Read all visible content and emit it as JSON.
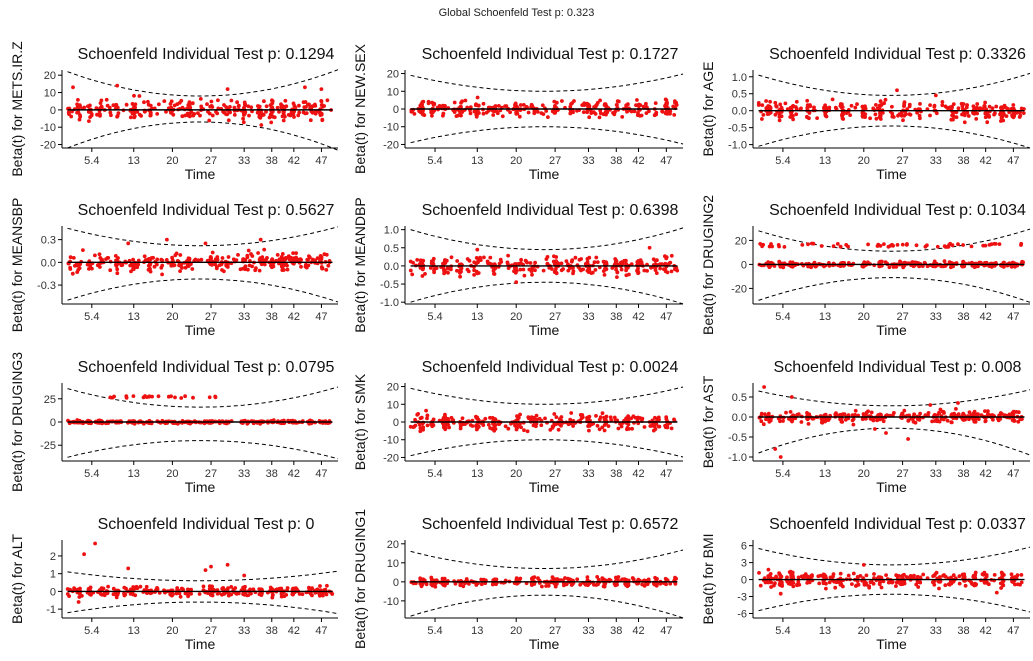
{
  "global_title": "Global Schoenfeld Test p: 0.323",
  "colors": {
    "points": "#ee1111",
    "line": "#000000",
    "band": "#000000",
    "background": "#ffffff"
  },
  "chart_data": [
    {
      "type": "scatter",
      "title": "Schoenfeld Individual Test p: 0.1294",
      "xlabel": "Time",
      "ylabel": "Beta(t) for METS.IR.Z",
      "xlim": [
        0,
        50
      ],
      "x_ticks": [
        "5.4",
        "13",
        "20",
        "27",
        "33",
        "38",
        "42",
        "47"
      ],
      "ylim": [
        -22,
        23
      ],
      "y_ticks": [
        -20,
        -10,
        0,
        10,
        20
      ],
      "spread": 5,
      "outliers": [
        [
          2,
          13
        ],
        [
          10,
          14
        ],
        [
          30,
          12
        ],
        [
          44,
          13
        ],
        [
          47,
          12
        ]
      ],
      "band_mid": [
        8,
        -7
      ],
      "band_end": [
        22,
        -22
      ]
    },
    {
      "type": "scatter",
      "title": "Schoenfeld Individual Test p: 0.1727",
      "xlabel": "Time",
      "ylabel": "Beta(t) for NEW.SEX",
      "xlim": [
        0,
        50
      ],
      "x_ticks": [
        "5.4",
        "13",
        "20",
        "27",
        "33",
        "38",
        "42",
        "47"
      ],
      "ylim": [
        -22,
        22
      ],
      "y_ticks": [
        -20,
        -10,
        0,
        10,
        20
      ],
      "spread": 4,
      "outliers": [],
      "band_mid": [
        10,
        -10
      ],
      "band_end": [
        19,
        -19
      ]
    },
    {
      "type": "scatter",
      "title": "Schoenfeld Individual Test p: 0.3326",
      "xlabel": "Time",
      "ylabel": "Beta(t) for AGE",
      "xlim": [
        0,
        50
      ],
      "x_ticks": [
        "5.4",
        "13",
        "20",
        "27",
        "33",
        "38",
        "42",
        "47"
      ],
      "ylim": [
        -1.1,
        1.2
      ],
      "y_ticks": [
        "-1.0",
        "-0.5",
        "0.0",
        "0.5",
        "1.0"
      ],
      "spread": 0.25,
      "outliers": [
        [
          26,
          0.6
        ],
        [
          33,
          0.45
        ]
      ],
      "band_mid": [
        0.45,
        -0.45
      ],
      "band_end": [
        1.05,
        -1.05
      ]
    },
    {
      "type": "scatter",
      "title": "Schoenfeld Individual Test p: 0.5627",
      "xlabel": "Time",
      "ylabel": "Beta(t) for MEANSBP",
      "xlim": [
        0,
        50
      ],
      "x_ticks": [
        "5.4",
        "13",
        "20",
        "27",
        "33",
        "38",
        "42",
        "47"
      ],
      "ylim": [
        -0.55,
        0.48
      ],
      "y_ticks": [
        "-0.3",
        "0.0",
        "0.3"
      ],
      "spread": 0.1,
      "outliers": [
        [
          19,
          0.3
        ],
        [
          26,
          0.25
        ],
        [
          36,
          0.3
        ],
        [
          12,
          0.25
        ]
      ],
      "band_mid": [
        0.22,
        -0.22
      ],
      "band_end": [
        0.45,
        -0.5
      ]
    },
    {
      "type": "scatter",
      "title": "Schoenfeld Individual Test p: 0.6398",
      "xlabel": "Time",
      "ylabel": "Beta(t) for MEANDBP",
      "xlim": [
        0,
        50
      ],
      "x_ticks": [
        "5.4",
        "13",
        "20",
        "27",
        "33",
        "38",
        "42",
        "47"
      ],
      "ylim": [
        -1.05,
        1.1
      ],
      "y_ticks": [
        "-1.0",
        "-0.5",
        "0.0",
        "0.5",
        "1.0"
      ],
      "spread": 0.22,
      "outliers": [
        [
          13,
          0.45
        ],
        [
          44,
          0.5
        ],
        [
          20,
          -0.45
        ]
      ],
      "band_mid": [
        0.45,
        -0.45
      ],
      "band_end": [
        1.0,
        -1.0
      ]
    },
    {
      "type": "scatter",
      "title": "Schoenfeld Individual Test p: 0.1034",
      "xlabel": "Time",
      "ylabel": "Beta(t) for DRUGING2",
      "xlim": [
        0,
        50
      ],
      "x_ticks": [
        "5.4",
        "13",
        "20",
        "27",
        "33",
        "38",
        "42",
        "47"
      ],
      "ylim": [
        -33,
        32
      ],
      "y_ticks": [
        -20,
        0,
        20
      ],
      "spread": 2,
      "outliers": [],
      "cluster_y": 16,
      "band_mid": [
        11,
        -11
      ],
      "band_end": [
        28,
        -30
      ]
    },
    {
      "type": "scatter",
      "title": "Schoenfeld Individual Test p: 0.0795",
      "xlabel": "Time",
      "ylabel": "Beta(t) for DRUGING3",
      "xlim": [
        0,
        50
      ],
      "x_ticks": [
        "5.4",
        "13",
        "20",
        "27",
        "33",
        "38",
        "42",
        "47"
      ],
      "ylim": [
        -42,
        42
      ],
      "y_ticks": [
        -25,
        0,
        25
      ],
      "spread": 1.5,
      "outliers": [],
      "cluster_y": 27,
      "cluster_range": [
        8,
        28
      ],
      "band_mid": [
        16,
        -20
      ],
      "band_end": [
        36,
        -38
      ]
    },
    {
      "type": "scatter",
      "title": "Schoenfeld Individual Test p: 0.0024",
      "xlabel": "Time",
      "ylabel": "Beta(t) for SMK",
      "xlim": [
        0,
        50
      ],
      "x_ticks": [
        "5.4",
        "13",
        "20",
        "27",
        "33",
        "38",
        "42",
        "47"
      ],
      "ylim": [
        -22,
        22
      ],
      "y_ticks": [
        -20,
        -10,
        0,
        10,
        20
      ],
      "spread": 4,
      "outliers": [],
      "band_mid": [
        10,
        -10
      ],
      "band_end": [
        19,
        -19
      ]
    },
    {
      "type": "scatter",
      "title": "Schoenfeld Individual Test p: 0.008",
      "xlabel": "Time",
      "ylabel": "Beta(t) for AST",
      "xlim": [
        0,
        50
      ],
      "x_ticks": [
        "5.4",
        "13",
        "20",
        "27",
        "33",
        "38",
        "42",
        "47"
      ],
      "ylim": [
        -1.1,
        0.85
      ],
      "y_ticks": [
        "-1.0",
        "-0.5",
        "0.0",
        "0.5"
      ],
      "spread": 0.12,
      "outliers": [
        [
          2,
          0.75
        ],
        [
          4,
          -0.8
        ],
        [
          5,
          -1.0
        ],
        [
          7,
          0.5
        ],
        [
          24,
          -0.4
        ],
        [
          28,
          -0.55
        ],
        [
          32,
          0.3
        ],
        [
          37,
          0.35
        ],
        [
          22,
          -0.3
        ]
      ],
      "band_mid": [
        0.28,
        -0.28
      ],
      "band_end": [
        0.65,
        -0.9
      ]
    },
    {
      "type": "scatter",
      "title": "Schoenfeld Individual Test p: 0",
      "xlabel": "Time",
      "ylabel": "Beta(t) for ALT",
      "xlim": [
        0,
        50
      ],
      "x_ticks": [
        "5.4",
        "13",
        "20",
        "27",
        "33",
        "38",
        "42",
        "47"
      ],
      "ylim": [
        -1.5,
        2.9
      ],
      "y_ticks": [
        -1,
        0,
        1,
        2
      ],
      "spread": 0.25,
      "outliers": [
        [
          4,
          2.1
        ],
        [
          6,
          2.7
        ],
        [
          12,
          1.3
        ],
        [
          26,
          1.2
        ],
        [
          27,
          1.4
        ],
        [
          30,
          1.5
        ],
        [
          33,
          0.9
        ],
        [
          3,
          -0.6
        ]
      ],
      "band_mid": [
        0.6,
        -0.6
      ],
      "band_end": [
        1.1,
        -1.2
      ]
    },
    {
      "type": "scatter",
      "title": "Schoenfeld Individual Test p: 0.6572",
      "xlabel": "Time",
      "ylabel": "Beta(t) for DRUGING1",
      "xlim": [
        0,
        50
      ],
      "x_ticks": [
        "5.4",
        "13",
        "20",
        "27",
        "33",
        "38",
        "42",
        "47"
      ],
      "ylim": [
        -19,
        22
      ],
      "y_ticks": [
        -10,
        0,
        10,
        20
      ],
      "spread": 2,
      "outliers": [],
      "band_mid": [
        7,
        -7
      ],
      "band_end": [
        16,
        -18
      ]
    },
    {
      "type": "scatter",
      "title": "Schoenfeld Individual Test p: 0.0337",
      "xlabel": "Time",
      "ylabel": "Beta(t) for BMI",
      "xlim": [
        0,
        50
      ],
      "x_ticks": [
        "5.4",
        "13",
        "20",
        "27",
        "33",
        "38",
        "42",
        "47"
      ],
      "ylim": [
        -6.8,
        7
      ],
      "y_ticks": [
        -6,
        -3,
        0,
        3,
        6
      ],
      "spread": 1.2,
      "outliers": [
        [
          20,
          2.6
        ],
        [
          5,
          -2.5
        ],
        [
          44,
          -2.3
        ]
      ],
      "band_mid": [
        2.6,
        -2.6
      ],
      "band_end": [
        5.5,
        -5.5
      ]
    }
  ]
}
